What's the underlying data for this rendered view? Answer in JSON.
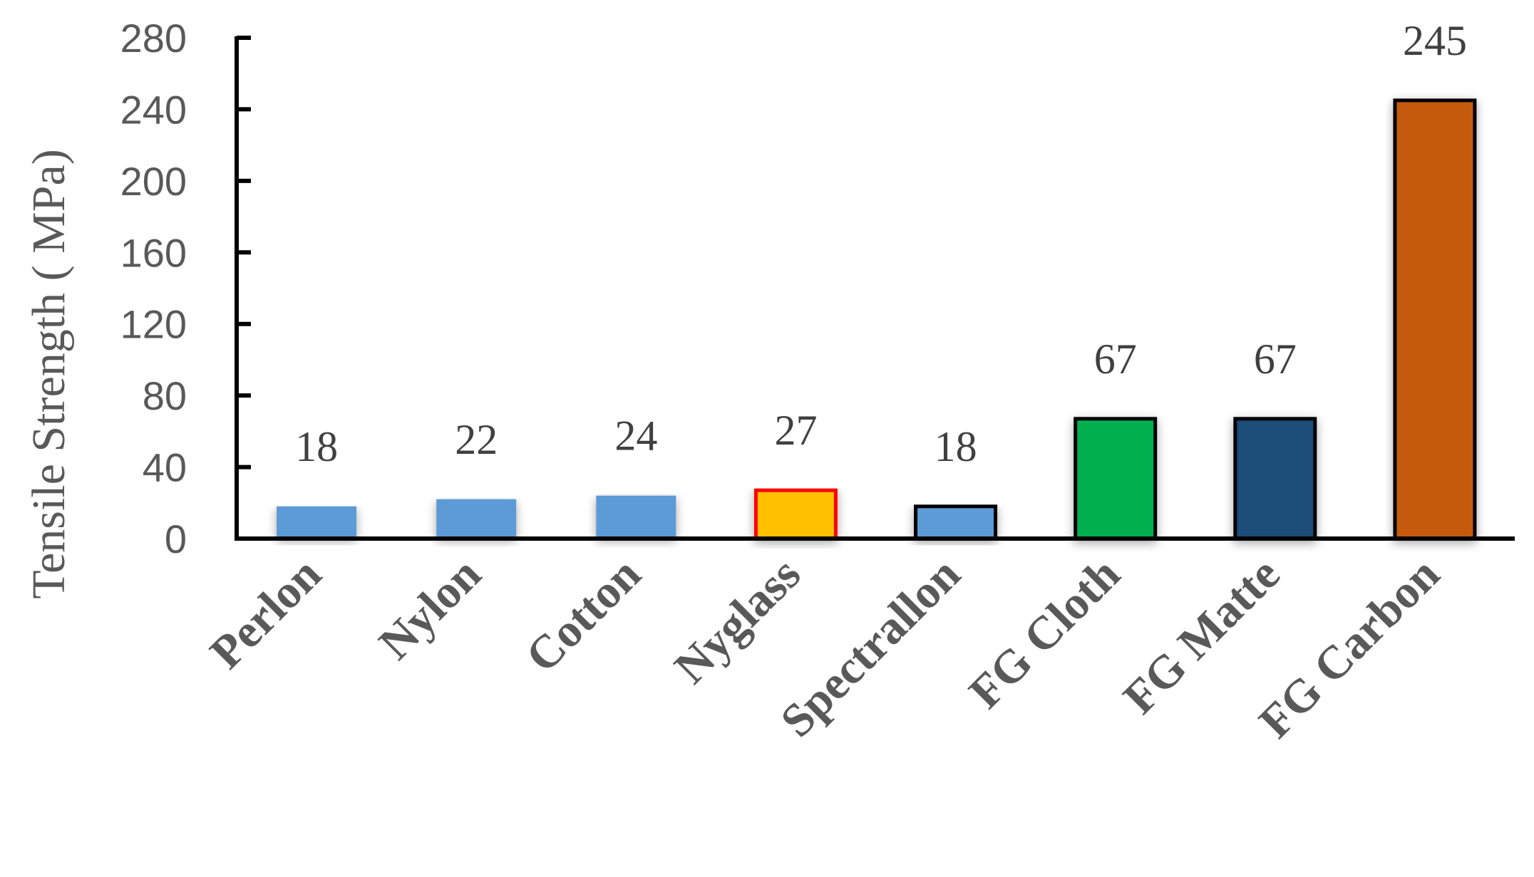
{
  "chart_data": {
    "type": "bar",
    "title": "",
    "xlabel": "",
    "ylabel": "Tensile Strength ( MPa)",
    "ylim": [
      0,
      280
    ],
    "yticks": [
      0,
      40,
      80,
      120,
      160,
      200,
      240,
      280
    ],
    "ytick_labels": [
      "0",
      "40",
      "80",
      "120",
      "160",
      "200",
      "240",
      "280"
    ],
    "categories": [
      "Perlon",
      "Nylon",
      "Cotton",
      "Nyglass",
      "Spectrallon",
      "FG Cloth",
      "FG Matte",
      "FG Carbon"
    ],
    "values": [
      18,
      22,
      24,
      27,
      18,
      67,
      67,
      245
    ],
    "data_labels": [
      "18",
      "22",
      "24",
      "27",
      "18",
      "67",
      "67",
      "245"
    ],
    "bar_fill_colors": [
      "#5b9bd5",
      "#5b9bd5",
      "#5b9bd5",
      "#ffc000",
      "#5b9bd5",
      "#00b050",
      "#1f4e79",
      "#c55a11"
    ],
    "bar_outline_colors": [
      "none",
      "none",
      "none",
      "#ff0000",
      "#000000",
      "#000000",
      "#000000",
      "#000000"
    ],
    "grid": false,
    "legend": "none"
  }
}
